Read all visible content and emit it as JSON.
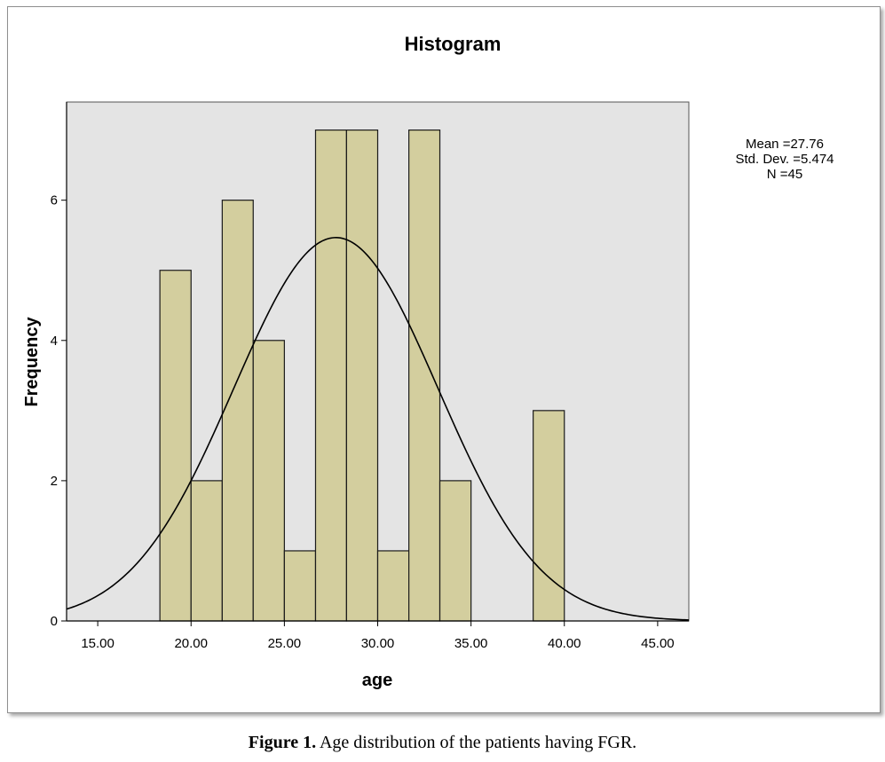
{
  "chart_data": {
    "type": "bar",
    "subtype": "histogram",
    "title": "Histogram",
    "xlabel": "age",
    "ylabel": "Frequency",
    "xlim": [
      13.33,
      46.67
    ],
    "ylim": [
      0,
      7.4
    ],
    "x_ticks": [
      15,
      20,
      25,
      30,
      35,
      40,
      45
    ],
    "x_tick_labels": [
      "15.00",
      "20.00",
      "25.00",
      "30.00",
      "35.00",
      "40.00",
      "45.00"
    ],
    "y_ticks": [
      0,
      2,
      4,
      6
    ],
    "y_tick_labels": [
      "0",
      "2",
      "4",
      "6"
    ],
    "bin_width": 1.667,
    "bins": [
      {
        "start": 18.33,
        "end": 20.0,
        "count": 5
      },
      {
        "start": 20.0,
        "end": 21.67,
        "count": 2
      },
      {
        "start": 21.67,
        "end": 23.33,
        "count": 6
      },
      {
        "start": 23.33,
        "end": 25.0,
        "count": 4
      },
      {
        "start": 25.0,
        "end": 26.67,
        "count": 1
      },
      {
        "start": 26.67,
        "end": 28.33,
        "count": 7
      },
      {
        "start": 28.33,
        "end": 30.0,
        "count": 7
      },
      {
        "start": 30.0,
        "end": 31.67,
        "count": 1
      },
      {
        "start": 31.67,
        "end": 33.33,
        "count": 7
      },
      {
        "start": 33.33,
        "end": 35.0,
        "count": 2
      },
      {
        "start": 38.33,
        "end": 40.0,
        "count": 3
      }
    ],
    "normal_curve": {
      "mean": 27.76,
      "std_dev": 5.474,
      "n": 45
    },
    "stats_box": {
      "mean": "Mean =27.76",
      "std_dev": "Std. Dev. =5.474",
      "n": "N =45"
    },
    "grid": false,
    "colors": {
      "bar_fill": "#D3CE9E",
      "bar_stroke": "#1a1a1a",
      "plot_background": "#E4E4E4",
      "curve": "#000000"
    }
  },
  "caption": {
    "label": "Figure 1.",
    "text": " Age distribution of the patients having FGR."
  }
}
